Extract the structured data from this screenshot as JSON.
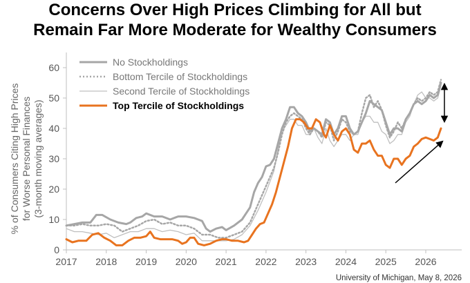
{
  "chart_data": {
    "type": "line",
    "title_lines": [
      "Concerns Over High Prices Climbing for All but",
      "Remain Far More Moderate for Wealthy Consumers"
    ],
    "ylabel_lines": [
      "% of Consumers Citing High Prices",
      "for Worse Personal Finances",
      "(3-month moving averages)"
    ],
    "xlabel": "",
    "ylim": [
      0,
      65
    ],
    "yticks": [
      0,
      10,
      20,
      30,
      40,
      50,
      60
    ],
    "xlim": [
      2017,
      2026.9
    ],
    "xticks": [
      2017,
      2018,
      2019,
      2020,
      2021,
      2022,
      2023,
      2024,
      2025,
      2026
    ],
    "legend_position": "top-left",
    "source": "University of Michigan, May 8, 2026",
    "colors": {
      "top": "#e8731f",
      "gray_dark": "#a6a6a6",
      "gray_mid": "#a6a6a6",
      "gray_light": "#bfbfbf",
      "axis": "#bfbfbf",
      "arrow": "#000000"
    },
    "series": [
      {
        "key": "no",
        "name": "No Stockholdings",
        "style": "thick",
        "data": [
          [
            2017.0,
            8
          ],
          [
            2017.2,
            8.5
          ],
          [
            2017.4,
            9
          ],
          [
            2017.6,
            9
          ],
          [
            2017.75,
            11.5
          ],
          [
            2017.9,
            11.5
          ],
          [
            2018.1,
            10
          ],
          [
            2018.3,
            9
          ],
          [
            2018.5,
            8.5
          ],
          [
            2018.6,
            9
          ],
          [
            2018.75,
            10.5
          ],
          [
            2018.9,
            11
          ],
          [
            2019.0,
            12
          ],
          [
            2019.2,
            11
          ],
          [
            2019.4,
            11
          ],
          [
            2019.6,
            10
          ],
          [
            2019.8,
            11
          ],
          [
            2020.0,
            11
          ],
          [
            2020.2,
            10.5
          ],
          [
            2020.3,
            10
          ],
          [
            2020.4,
            9.5
          ],
          [
            2020.5,
            7
          ],
          [
            2020.6,
            6
          ],
          [
            2020.75,
            7
          ],
          [
            2020.9,
            7.5
          ],
          [
            2021.0,
            6.5
          ],
          [
            2021.2,
            8
          ],
          [
            2021.4,
            10
          ],
          [
            2021.5,
            12
          ],
          [
            2021.6,
            14
          ],
          [
            2021.7,
            19
          ],
          [
            2021.8,
            22
          ],
          [
            2021.9,
            24
          ],
          [
            2022.0,
            27.5
          ],
          [
            2022.1,
            28
          ],
          [
            2022.2,
            30
          ],
          [
            2022.3,
            35
          ],
          [
            2022.4,
            40
          ],
          [
            2022.5,
            43
          ],
          [
            2022.6,
            47
          ],
          [
            2022.7,
            47
          ],
          [
            2022.8,
            45
          ],
          [
            2022.9,
            44
          ],
          [
            2023.0,
            42
          ],
          [
            2023.1,
            39
          ],
          [
            2023.2,
            40
          ],
          [
            2023.3,
            39
          ],
          [
            2023.4,
            38
          ],
          [
            2023.5,
            43
          ],
          [
            2023.6,
            42
          ],
          [
            2023.7,
            38
          ],
          [
            2023.8,
            40
          ],
          [
            2023.9,
            44
          ],
          [
            2024.0,
            44
          ],
          [
            2024.1,
            40
          ],
          [
            2024.2,
            38
          ],
          [
            2024.3,
            39
          ],
          [
            2024.4,
            42
          ],
          [
            2024.5,
            45
          ],
          [
            2024.6,
            49
          ],
          [
            2024.7,
            48
          ],
          [
            2024.8,
            47
          ],
          [
            2024.9,
            46
          ],
          [
            2025.0,
            42
          ],
          [
            2025.1,
            38
          ],
          [
            2025.2,
            40
          ],
          [
            2025.3,
            40
          ],
          [
            2025.4,
            39
          ],
          [
            2025.5,
            43
          ],
          [
            2025.6,
            45
          ],
          [
            2025.7,
            48
          ],
          [
            2025.8,
            49
          ],
          [
            2025.9,
            48
          ],
          [
            2026.0,
            49
          ],
          [
            2026.1,
            51
          ],
          [
            2026.2,
            50
          ],
          [
            2026.3,
            51
          ],
          [
            2026.38,
            55
          ]
        ]
      },
      {
        "key": "bottom",
        "name": "Bottom Tercile of Stockholdings",
        "style": "dotted",
        "data": [
          [
            2017.0,
            8
          ],
          [
            2017.2,
            8
          ],
          [
            2017.4,
            8.5
          ],
          [
            2017.6,
            8
          ],
          [
            2017.8,
            8
          ],
          [
            2018.0,
            8.5
          ],
          [
            2018.2,
            8
          ],
          [
            2018.4,
            6
          ],
          [
            2018.6,
            7
          ],
          [
            2018.8,
            8
          ],
          [
            2019.0,
            9.5
          ],
          [
            2019.2,
            10
          ],
          [
            2019.4,
            8.5
          ],
          [
            2019.6,
            9
          ],
          [
            2019.8,
            8
          ],
          [
            2020.0,
            8
          ],
          [
            2020.2,
            7
          ],
          [
            2020.4,
            5
          ],
          [
            2020.6,
            5
          ],
          [
            2020.8,
            4
          ],
          [
            2021.0,
            4
          ],
          [
            2021.2,
            5
          ],
          [
            2021.4,
            6
          ],
          [
            2021.6,
            9
          ],
          [
            2021.8,
            15
          ],
          [
            2022.0,
            21
          ],
          [
            2022.2,
            27
          ],
          [
            2022.3,
            32
          ],
          [
            2022.4,
            38
          ],
          [
            2022.5,
            42
          ],
          [
            2022.6,
            44
          ],
          [
            2022.7,
            45
          ],
          [
            2022.8,
            44
          ],
          [
            2022.9,
            43
          ],
          [
            2023.0,
            40
          ],
          [
            2023.1,
            38
          ],
          [
            2023.2,
            40
          ],
          [
            2023.3,
            39
          ],
          [
            2023.4,
            37
          ],
          [
            2023.5,
            42
          ],
          [
            2023.6,
            41
          ],
          [
            2023.7,
            36
          ],
          [
            2023.8,
            39
          ],
          [
            2023.9,
            43
          ],
          [
            2024.0,
            42
          ],
          [
            2024.1,
            39
          ],
          [
            2024.2,
            38
          ],
          [
            2024.3,
            39
          ],
          [
            2024.4,
            45
          ],
          [
            2024.5,
            50
          ],
          [
            2024.6,
            51
          ],
          [
            2024.7,
            47
          ],
          [
            2024.8,
            49
          ],
          [
            2024.9,
            46
          ],
          [
            2025.0,
            41
          ],
          [
            2025.1,
            37
          ],
          [
            2025.2,
            39
          ],
          [
            2025.3,
            42
          ],
          [
            2025.4,
            40
          ],
          [
            2025.5,
            43
          ],
          [
            2025.6,
            45
          ],
          [
            2025.7,
            48
          ],
          [
            2025.8,
            50
          ],
          [
            2025.9,
            49
          ],
          [
            2026.0,
            50
          ],
          [
            2026.1,
            52
          ],
          [
            2026.2,
            51
          ],
          [
            2026.3,
            52
          ],
          [
            2026.38,
            56
          ]
        ]
      },
      {
        "key": "second",
        "name": "Second Tercile of Stockholdings",
        "style": "thin",
        "data": [
          [
            2017.0,
            7
          ],
          [
            2017.2,
            6
          ],
          [
            2017.4,
            6
          ],
          [
            2017.6,
            5.5
          ],
          [
            2017.8,
            5
          ],
          [
            2018.0,
            5.5
          ],
          [
            2018.2,
            4
          ],
          [
            2018.4,
            5
          ],
          [
            2018.6,
            6
          ],
          [
            2018.8,
            6
          ],
          [
            2019.0,
            7
          ],
          [
            2019.2,
            7
          ],
          [
            2019.4,
            6
          ],
          [
            2019.6,
            6.5
          ],
          [
            2019.8,
            6
          ],
          [
            2020.0,
            5
          ],
          [
            2020.2,
            5.5
          ],
          [
            2020.4,
            3
          ],
          [
            2020.6,
            3
          ],
          [
            2020.8,
            3
          ],
          [
            2021.0,
            3
          ],
          [
            2021.2,
            3.5
          ],
          [
            2021.4,
            5
          ],
          [
            2021.6,
            8
          ],
          [
            2021.8,
            13
          ],
          [
            2022.0,
            19
          ],
          [
            2022.2,
            26
          ],
          [
            2022.3,
            33
          ],
          [
            2022.4,
            39
          ],
          [
            2022.5,
            41
          ],
          [
            2022.6,
            43
          ],
          [
            2022.7,
            43
          ],
          [
            2022.8,
            41
          ],
          [
            2022.9,
            41
          ],
          [
            2023.0,
            38
          ],
          [
            2023.1,
            38
          ],
          [
            2023.2,
            40
          ],
          [
            2023.3,
            37
          ],
          [
            2023.4,
            35
          ],
          [
            2023.5,
            40
          ],
          [
            2023.6,
            36
          ],
          [
            2023.7,
            34
          ],
          [
            2023.8,
            36
          ],
          [
            2023.9,
            38
          ],
          [
            2024.0,
            38
          ],
          [
            2024.1,
            36
          ],
          [
            2024.2,
            38
          ],
          [
            2024.3,
            38
          ],
          [
            2024.4,
            42
          ],
          [
            2024.5,
            44
          ],
          [
            2024.6,
            44
          ],
          [
            2024.7,
            42
          ],
          [
            2024.8,
            42
          ],
          [
            2024.9,
            39
          ],
          [
            2025.0,
            38
          ],
          [
            2025.1,
            35
          ],
          [
            2025.2,
            36
          ],
          [
            2025.3,
            38
          ],
          [
            2025.4,
            38
          ],
          [
            2025.5,
            42
          ],
          [
            2025.6,
            44
          ],
          [
            2025.7,
            48
          ],
          [
            2025.8,
            51
          ],
          [
            2025.9,
            52
          ],
          [
            2026.0,
            50
          ],
          [
            2026.1,
            50
          ],
          [
            2026.2,
            49
          ],
          [
            2026.3,
            50
          ],
          [
            2026.38,
            54
          ]
        ]
      },
      {
        "key": "top",
        "name": "Top Tercile of Stockholdings",
        "style": "orange",
        "data": [
          [
            2017.0,
            3.5
          ],
          [
            2017.15,
            2.5
          ],
          [
            2017.3,
            3
          ],
          [
            2017.5,
            3
          ],
          [
            2017.65,
            5
          ],
          [
            2017.8,
            5.5
          ],
          [
            2017.95,
            4
          ],
          [
            2018.1,
            3
          ],
          [
            2018.25,
            1.5
          ],
          [
            2018.4,
            1.5
          ],
          [
            2018.55,
            3
          ],
          [
            2018.7,
            4
          ],
          [
            2018.85,
            4
          ],
          [
            2019.0,
            4.5
          ],
          [
            2019.1,
            6
          ],
          [
            2019.2,
            4
          ],
          [
            2019.35,
            3.5
          ],
          [
            2019.5,
            3.5
          ],
          [
            2019.65,
            3.5
          ],
          [
            2019.8,
            3
          ],
          [
            2019.9,
            2
          ],
          [
            2020.0,
            2.5
          ],
          [
            2020.1,
            4
          ],
          [
            2020.2,
            4
          ],
          [
            2020.3,
            2
          ],
          [
            2020.45,
            1.5
          ],
          [
            2020.6,
            2
          ],
          [
            2020.75,
            3
          ],
          [
            2020.9,
            3.5
          ],
          [
            2021.0,
            3.5
          ],
          [
            2021.15,
            3
          ],
          [
            2021.3,
            3
          ],
          [
            2021.45,
            2.5
          ],
          [
            2021.55,
            3
          ],
          [
            2021.65,
            5
          ],
          [
            2021.75,
            7
          ],
          [
            2021.85,
            8.5
          ],
          [
            2021.95,
            9
          ],
          [
            2022.05,
            12
          ],
          [
            2022.15,
            15
          ],
          [
            2022.25,
            19
          ],
          [
            2022.35,
            24
          ],
          [
            2022.45,
            29
          ],
          [
            2022.55,
            34
          ],
          [
            2022.65,
            40
          ],
          [
            2022.75,
            43
          ],
          [
            2022.85,
            43
          ],
          [
            2022.95,
            42
          ],
          [
            2023.05,
            40
          ],
          [
            2023.15,
            40
          ],
          [
            2023.25,
            43
          ],
          [
            2023.35,
            42
          ],
          [
            2023.45,
            38
          ],
          [
            2023.5,
            37
          ],
          [
            2023.6,
            41
          ],
          [
            2023.7,
            38
          ],
          [
            2023.8,
            36
          ],
          [
            2023.9,
            39
          ],
          [
            2024.0,
            40
          ],
          [
            2024.1,
            38
          ],
          [
            2024.2,
            33
          ],
          [
            2024.3,
            32
          ],
          [
            2024.4,
            35
          ],
          [
            2024.5,
            35
          ],
          [
            2024.6,
            36
          ],
          [
            2024.7,
            33
          ],
          [
            2024.8,
            31
          ],
          [
            2024.9,
            31
          ],
          [
            2025.0,
            28
          ],
          [
            2025.1,
            27
          ],
          [
            2025.2,
            30
          ],
          [
            2025.3,
            30
          ],
          [
            2025.4,
            28
          ],
          [
            2025.5,
            30
          ],
          [
            2025.6,
            31
          ],
          [
            2025.7,
            34
          ],
          [
            2025.8,
            35
          ],
          [
            2025.9,
            36.5
          ],
          [
            2026.0,
            37
          ],
          [
            2026.1,
            36.5
          ],
          [
            2026.2,
            36
          ],
          [
            2026.3,
            37
          ],
          [
            2026.38,
            40
          ]
        ]
      }
    ]
  }
}
